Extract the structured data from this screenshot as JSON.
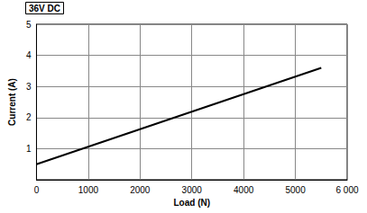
{
  "chart_data": {
    "type": "line",
    "title": "36V DC",
    "x_label": "Load (N)",
    "y_label": "Current (A)",
    "x": [
      0,
      5500
    ],
    "values": [
      0.5,
      3.6
    ],
    "color": "#000000",
    "xlim": [
      0,
      6000
    ],
    "xticks": [
      0,
      1000,
      2000,
      3000,
      4000,
      5000,
      {
        "value": 6000,
        "label": "6 000"
      }
    ],
    "ylim": [
      0,
      5
    ],
    "yticks": [
      1,
      2,
      3,
      4,
      5
    ],
    "grid": true
  }
}
